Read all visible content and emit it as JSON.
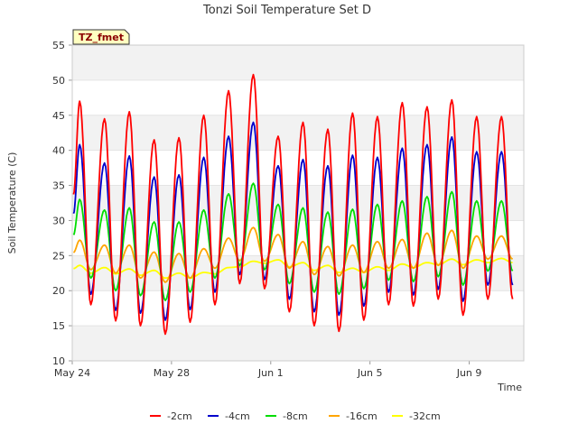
{
  "chart_data": {
    "type": "line",
    "title": "Tonzi Soil Temperature Set D",
    "xlabel": "Time",
    "ylabel": "Soil Temperature (C)",
    "badge": "TZ_fmet",
    "x_range_days": [
      0,
      18.2
    ],
    "x_ticks": [
      {
        "day": 0,
        "label": "May 24"
      },
      {
        "day": 4,
        "label": "May 28"
      },
      {
        "day": 8,
        "label": "Jun 1"
      },
      {
        "day": 12,
        "label": "Jun 5"
      },
      {
        "day": 16,
        "label": "Jun 9"
      }
    ],
    "ylim": [
      10,
      55
    ],
    "y_ticks": [
      10,
      15,
      20,
      25,
      30,
      35,
      40,
      45,
      50,
      55
    ],
    "grid": "horizontal-bands",
    "legend_position": "bottom",
    "days": [
      0.3,
      1.3,
      2.3,
      3.3,
      4.3,
      5.3,
      6.3,
      7.3,
      8.3,
      9.3,
      10.3,
      11.3,
      12.3,
      13.3,
      14.3,
      15.3,
      16.3,
      17.3
    ],
    "series": [
      {
        "name": "-2cm",
        "color": "#ff0000",
        "max": [
          47,
          44.5,
          45.5,
          41.5,
          41.8,
          45,
          48.5,
          50.8,
          42,
          44,
          43,
          45.3,
          44.8,
          46.8,
          46.2,
          47.2,
          44.8,
          44.8
        ],
        "min": [
          17.5,
          18,
          15.7,
          15,
          13.8,
          15.5,
          18,
          21,
          20.3,
          17,
          15,
          14.2,
          15.8,
          18,
          17.8,
          18.8,
          16.5,
          18.8
        ]
      },
      {
        "name": "-4cm",
        "color": "#0000cc",
        "max": [
          40.8,
          38.2,
          39.2,
          36.2,
          36.5,
          39,
          42,
          44,
          37.8,
          38.7,
          37.8,
          39.3,
          39,
          40.3,
          40.8,
          41.9,
          39.8,
          39.8
        ],
        "min": [
          19,
          19.5,
          17.2,
          16.8,
          15.8,
          17.3,
          19.8,
          22.3,
          21.6,
          18.8,
          17,
          16.5,
          17.8,
          19.8,
          19.4,
          20.2,
          18.5,
          20.8
        ]
      },
      {
        "name": "-8cm",
        "color": "#00dd00",
        "max": [
          33,
          31.5,
          31.8,
          29.8,
          29.8,
          31.5,
          33.8,
          35.3,
          32.3,
          31.8,
          31.2,
          31.6,
          32.3,
          32.8,
          33.4,
          34.1,
          32.8,
          32.8
        ],
        "min": [
          21.8,
          21.8,
          20,
          19.3,
          18.6,
          19.8,
          21.8,
          23.6,
          23,
          21,
          19.8,
          19.5,
          20.3,
          21.5,
          21.3,
          22,
          20.8,
          22.8
        ]
      },
      {
        "name": "-16cm",
        "color": "#ffa500",
        "max": [
          27.2,
          26.5,
          26.5,
          25.5,
          25.3,
          26,
          27.5,
          29,
          28,
          27,
          26.3,
          26.5,
          27,
          27.3,
          28.2,
          28.6,
          27.8,
          27.8
        ],
        "min": [
          23.3,
          23,
          22.5,
          21.8,
          21.2,
          21.8,
          23.2,
          24.3,
          24.2,
          23.2,
          22.3,
          22.1,
          22.6,
          23.2,
          23.2,
          23.6,
          23.2,
          24.5
        ]
      },
      {
        "name": "-32cm",
        "color": "#ffff00",
        "max": [
          23.6,
          23.3,
          23.1,
          22.9,
          22.5,
          22.6,
          23.3,
          24.2,
          24.4,
          24,
          23.6,
          23.2,
          23.4,
          23.8,
          24,
          24.5,
          24.4,
          24.6
        ],
        "min": [
          22.6,
          22.5,
          22.4,
          22.2,
          21.8,
          21.8,
          22.4,
          23.4,
          23.9,
          23.4,
          22.9,
          22.6,
          22.6,
          22.9,
          23.3,
          23.7,
          23.7,
          24
        ]
      }
    ]
  }
}
